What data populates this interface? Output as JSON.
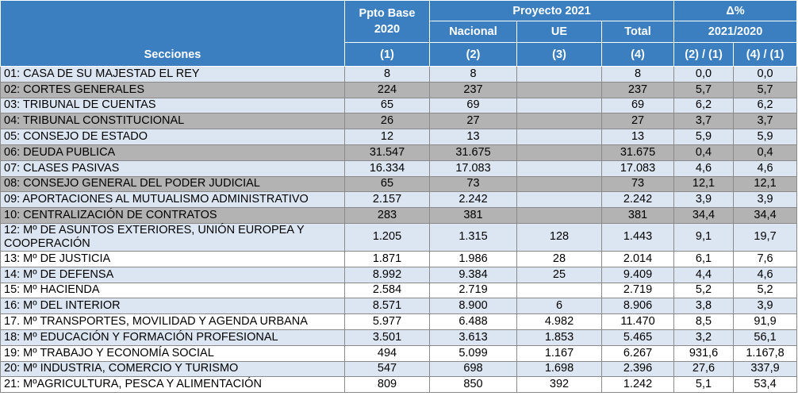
{
  "table": {
    "header": {
      "sections": "Secciones",
      "base": "Ppto Base 2020",
      "project": "Proyecto 2021",
      "delta": "Δ%",
      "national": "Nacional",
      "eu": "UE",
      "total": "Total",
      "period": "2021/2020",
      "numbers": [
        "(1)",
        "(2)",
        "(3)",
        "(4)",
        "(2) / (1)",
        "(4) / (1)"
      ]
    },
    "rows": [
      [
        "01: CASA DE SU MAJESTAD EL REY",
        "8",
        "8",
        null,
        "8",
        "0,0",
        "0,0"
      ],
      [
        "02: CORTES GENERALES",
        "224",
        "237",
        null,
        "237",
        "5,7",
        "5,7"
      ],
      [
        "03: TRIBUNAL DE CUENTAS",
        "65",
        "69",
        null,
        "69",
        "6,2",
        "6,2"
      ],
      [
        "04: TRIBUNAL CONSTITUCIONAL",
        "26",
        "27",
        null,
        "27",
        "3,7",
        "3,7"
      ],
      [
        "05: CONSEJO DE ESTADO",
        "12",
        "13",
        null,
        "13",
        "5,9",
        "5,9"
      ],
      [
        "06: DEUDA PUBLICA",
        "31.547",
        "31.675",
        null,
        "31.675",
        "0,4",
        "0,4"
      ],
      [
        "07: CLASES PASIVAS",
        "16.334",
        "17.083",
        null,
        "17.083",
        "4,6",
        "4,6"
      ],
      [
        "08: CONSEJO GENERAL DEL PODER JUDICIAL",
        "65",
        "73",
        null,
        "73",
        "12,1",
        "12,1"
      ],
      [
        "09: APORTACIONES AL MUTUALISMO ADMINISTRATIVO",
        "2.157",
        "2.242",
        null,
        "2.242",
        "3,9",
        "3,9"
      ],
      [
        "10: CENTRALIZACIÓN DE CONTRATOS",
        "283",
        "381",
        null,
        "381",
        "34,4",
        "34,4"
      ],
      [
        "12: Mº DE ASUNTOS EXTERIORES, UNIÓN EUROPEA Y COOPERACIÓN",
        "1.205",
        "1.315",
        "128",
        "1.443",
        "9,1",
        "19,7"
      ],
      [
        "13: Mº DE JUSTICIA",
        "1.871",
        "1.986",
        "28",
        "2.014",
        "6,1",
        "7,6"
      ],
      [
        "14: Mº DE DEFENSA",
        "8.992",
        "9.384",
        "25",
        "9.409",
        "4,4",
        "4,6"
      ],
      [
        "15: Mº HACIENDA",
        "2.584",
        "2.719",
        null,
        "2.719",
        "5,2",
        "5,2"
      ],
      [
        "16: Mº DEL INTERIOR",
        "8.571",
        "8.900",
        "6",
        "8.906",
        "3,8",
        "3,9"
      ],
      [
        "17. Mº TRANSPORTES, MOVILIDAD Y AGENDA URBANA",
        "5.977",
        "6.488",
        "4.982",
        "11.470",
        "8,5",
        "91,9"
      ],
      [
        "18: Mº EDUCACIÓN Y FORMACIÓN PROFESIONAL",
        "3.501",
        "3.613",
        "1.853",
        "5.465",
        "3,2",
        "56,1"
      ],
      [
        "19: Mº TRABAJO Y ECONOMÍA SOCIAL",
        "494",
        "5.099",
        "1.167",
        "6.267",
        "931,6",
        "1.167,8"
      ],
      [
        "20: Mº INDUSTRIA, COMERCIO Y  TURISMO",
        "547",
        "698",
        "1.698",
        "2.396",
        "27,6",
        "337,9"
      ],
      [
        "21: MºAGRICULTURA, PESCA Y ALIMENTACIÓN",
        "809",
        "850",
        "392",
        "1.242",
        "5,1",
        "53,4"
      ]
    ]
  }
}
